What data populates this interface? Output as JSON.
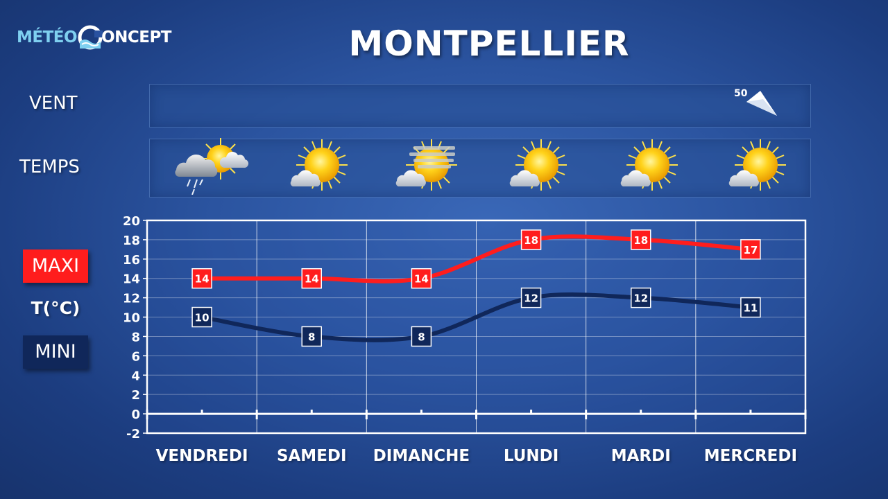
{
  "logo": {
    "part1": "MÉTÉO",
    "part2": "ONCEPT"
  },
  "title": "MONTPELLIER",
  "rows": {
    "wind_label": "VENT",
    "weather_label": "TEMPS"
  },
  "wind": [
    {
      "day": "MERCREDI",
      "speed": "50",
      "direction": "NW"
    }
  ],
  "weather_icons": [
    "rain-partly-sunny-icon",
    "sun-cloud-icon",
    "hazy-sun-cloud-icon",
    "sun-cloud-icon",
    "sun-cloud-icon",
    "sun-cloud-icon"
  ],
  "legend": {
    "maxi": "MAXI",
    "unit": "T(°C)",
    "mini": "MINI"
  },
  "colors": {
    "maxi": "#ff1d1d",
    "mini": "#10275a",
    "grid": "#ffffff"
  },
  "chart_data": {
    "type": "line",
    "categories": [
      "VENDREDI",
      "SAMEDI",
      "DIMANCHE",
      "LUNDI",
      "MARDI",
      "MERCREDI"
    ],
    "series": [
      {
        "name": "MAXI",
        "values": [
          14,
          14,
          14,
          18,
          18,
          17
        ]
      },
      {
        "name": "MINI",
        "values": [
          10,
          8,
          8,
          12,
          12,
          11
        ]
      }
    ],
    "ylim": [
      -2,
      20
    ],
    "yticks": [
      -2,
      0,
      2,
      4,
      6,
      8,
      10,
      12,
      14,
      16,
      18,
      20
    ],
    "ylabel": "T(°C)",
    "grid": true
  }
}
